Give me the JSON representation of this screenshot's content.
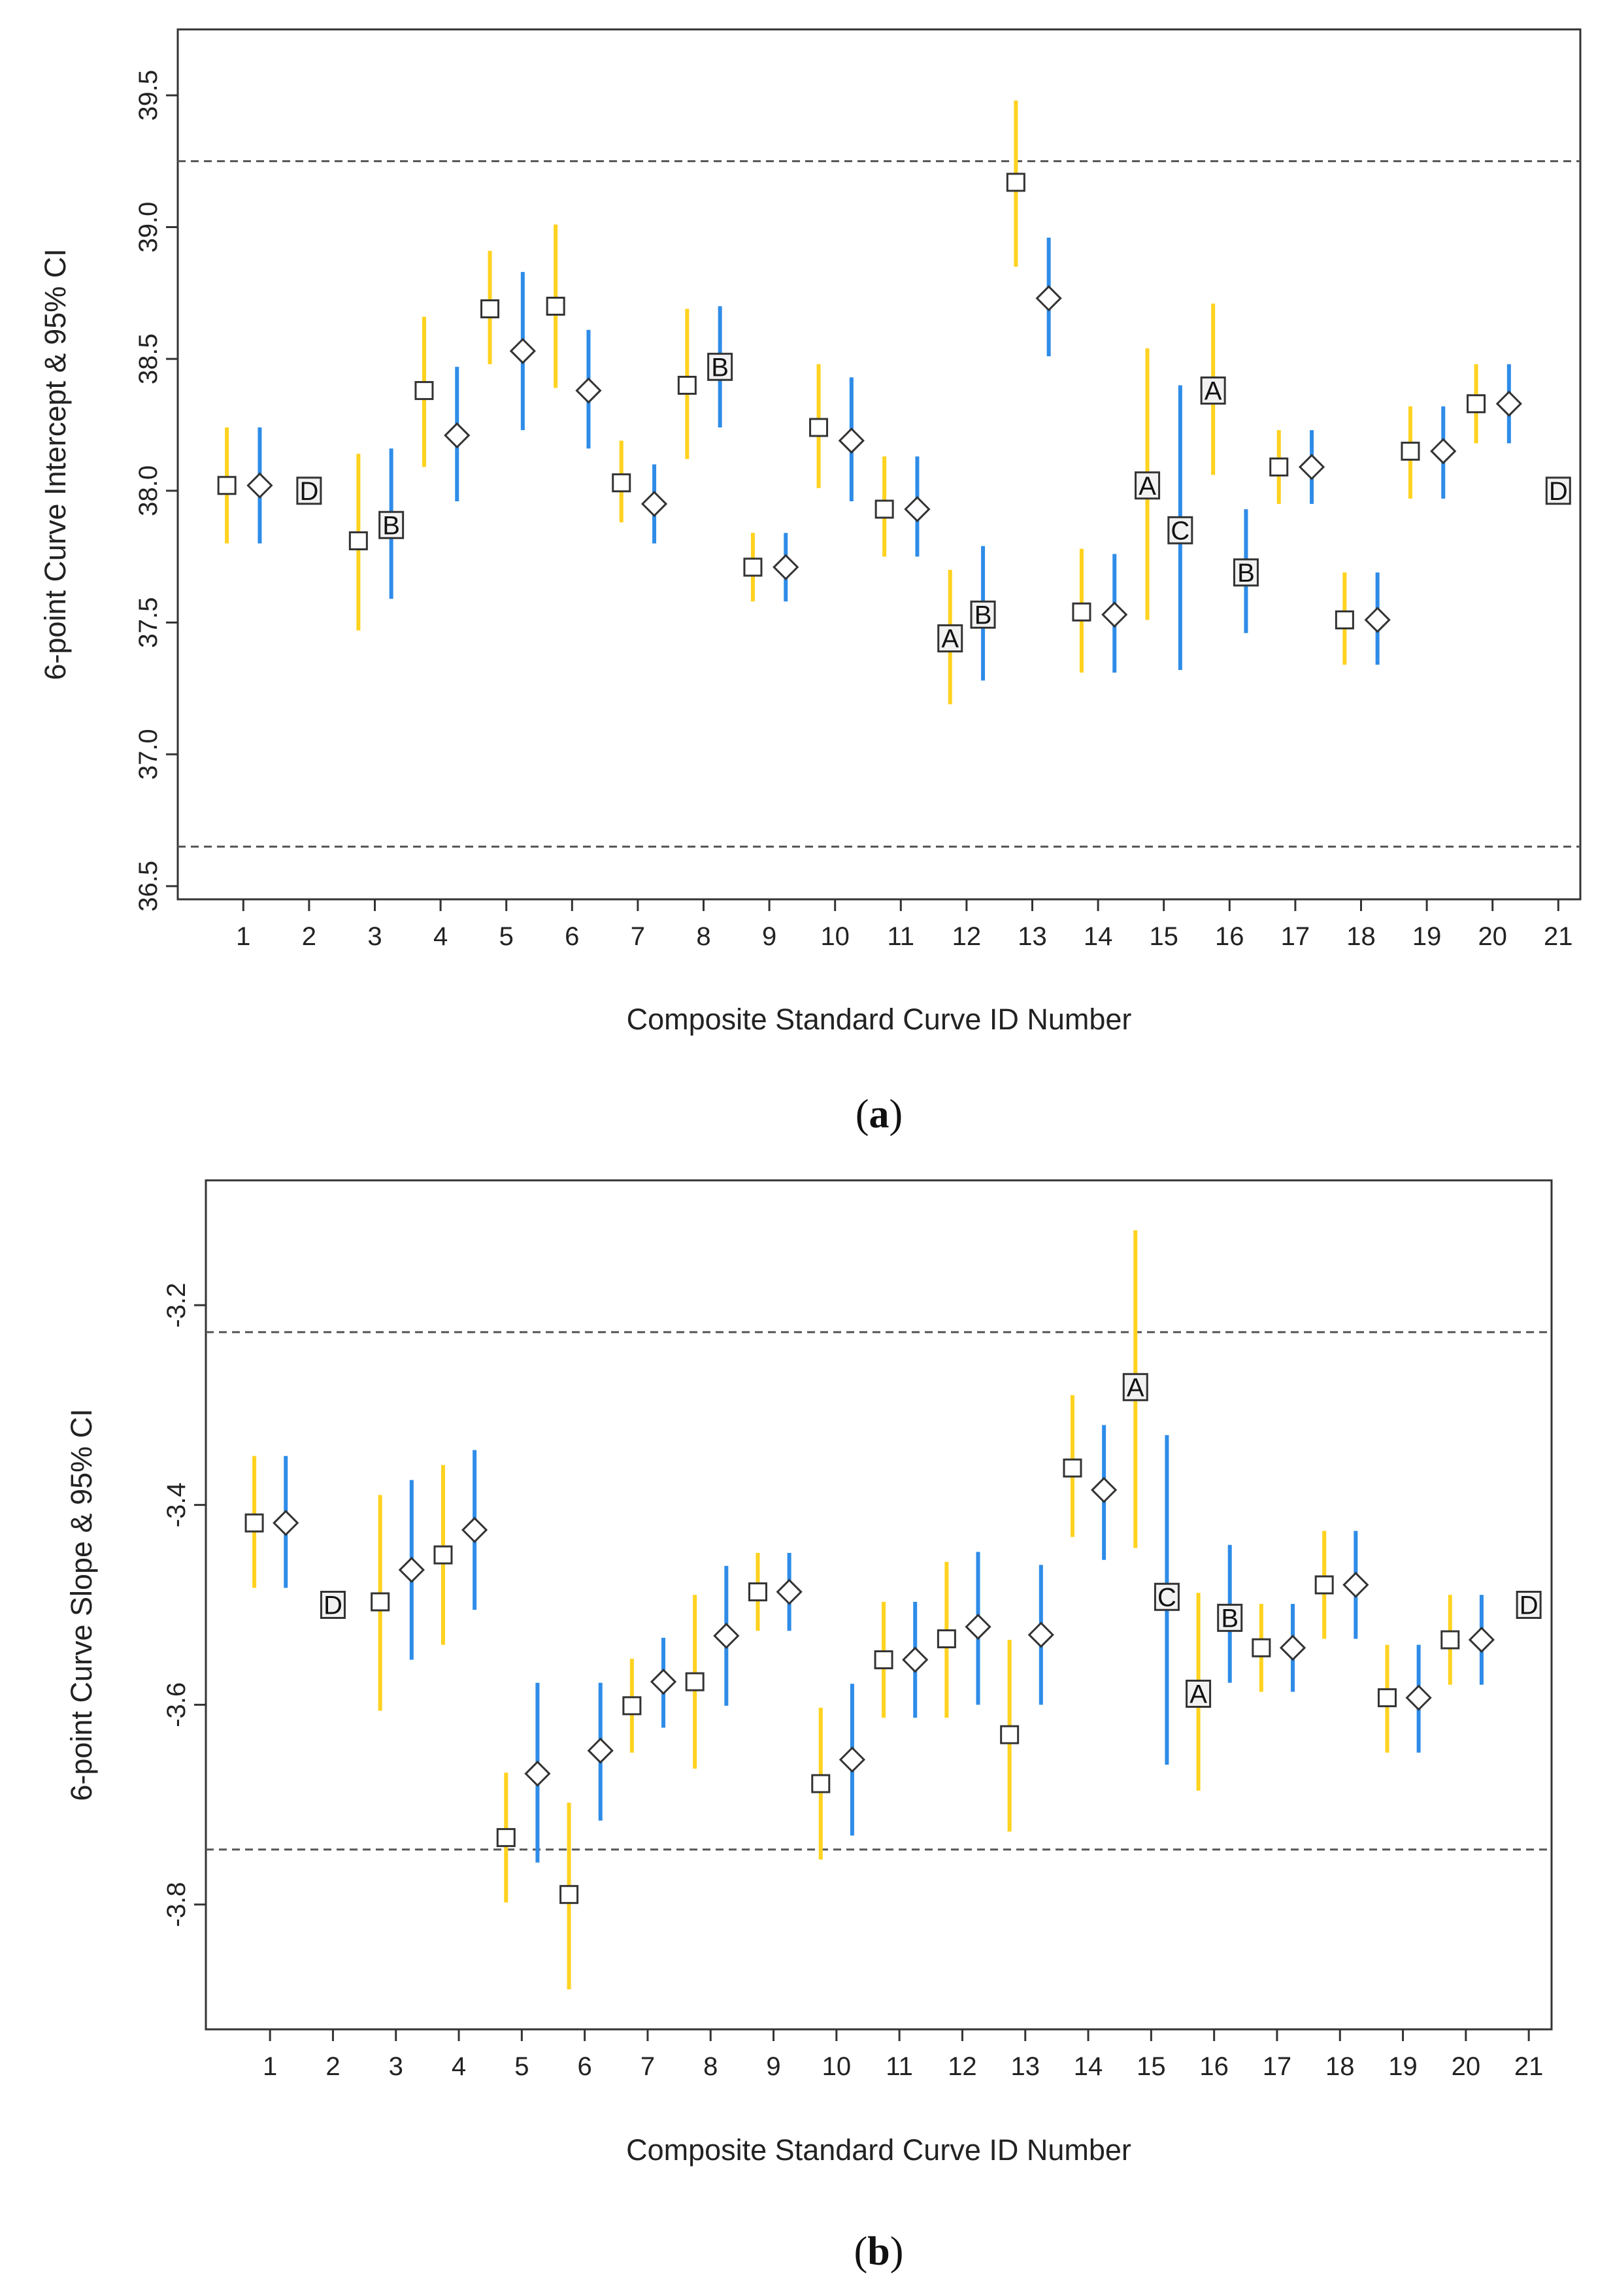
{
  "chart_data": [
    {
      "type": "scatter",
      "panel_label": "a",
      "ylabel": "6-point Curve Intercept & 95% CI",
      "xlabel": "Composite Standard Curve ID Number",
      "ylim": [
        36.45,
        39.75
      ],
      "yticks": [
        "36.5",
        "37.0",
        "37.5",
        "38.0",
        "38.5",
        "39.0",
        "39.5"
      ],
      "xticks": [
        "1",
        "2",
        "3",
        "4",
        "5",
        "6",
        "7",
        "8",
        "9",
        "10",
        "11",
        "12",
        "13",
        "14",
        "15",
        "16",
        "17",
        "18",
        "19",
        "20",
        "21"
      ],
      "reference_lines": [
        39.25,
        36.65
      ],
      "colors": {
        "yellow": "#FFD21F",
        "blue": "#2E8CE8",
        "dashed": "#555555",
        "marker": "#333333"
      },
      "points": [
        {
          "x": 0.75,
          "y": 38.02,
          "lo": 37.8,
          "hi": 38.24,
          "marker": "square",
          "color": "yellow"
        },
        {
          "x": 1.25,
          "y": 38.02,
          "lo": 37.8,
          "hi": 38.24,
          "marker": "diamond",
          "color": "blue"
        },
        {
          "x": 2.0,
          "y": 38.0,
          "marker": "letter",
          "letter": "D"
        },
        {
          "x": 2.75,
          "y": 37.81,
          "lo": 37.47,
          "hi": 38.14,
          "marker": "square",
          "color": "yellow"
        },
        {
          "x": 3.25,
          "y": 37.87,
          "lo": 37.59,
          "hi": 38.16,
          "marker": "letter",
          "letter": "B",
          "color": "blue"
        },
        {
          "x": 3.75,
          "y": 38.38,
          "lo": 38.09,
          "hi": 38.66,
          "marker": "square",
          "color": "yellow"
        },
        {
          "x": 4.25,
          "y": 38.21,
          "lo": 37.96,
          "hi": 38.47,
          "marker": "diamond",
          "color": "blue"
        },
        {
          "x": 4.75,
          "y": 38.69,
          "lo": 38.48,
          "hi": 38.91,
          "marker": "square",
          "color": "yellow"
        },
        {
          "x": 5.25,
          "y": 38.53,
          "lo": 38.23,
          "hi": 38.83,
          "marker": "diamond",
          "color": "blue"
        },
        {
          "x": 5.75,
          "y": 38.7,
          "lo": 38.39,
          "hi": 39.01,
          "marker": "square",
          "color": "yellow"
        },
        {
          "x": 6.25,
          "y": 38.38,
          "lo": 38.16,
          "hi": 38.61,
          "marker": "diamond",
          "color": "blue"
        },
        {
          "x": 6.75,
          "y": 38.03,
          "lo": 37.88,
          "hi": 38.19,
          "marker": "square",
          "color": "yellow"
        },
        {
          "x": 7.25,
          "y": 37.95,
          "lo": 37.8,
          "hi": 38.1,
          "marker": "diamond",
          "color": "blue"
        },
        {
          "x": 7.75,
          "y": 38.4,
          "lo": 38.12,
          "hi": 38.69,
          "marker": "square",
          "color": "yellow"
        },
        {
          "x": 8.25,
          "y": 38.47,
          "lo": 38.24,
          "hi": 38.7,
          "marker": "letter",
          "letter": "B",
          "color": "blue"
        },
        {
          "x": 8.75,
          "y": 37.71,
          "lo": 37.58,
          "hi": 37.84,
          "marker": "square",
          "color": "yellow"
        },
        {
          "x": 9.25,
          "y": 37.71,
          "lo": 37.58,
          "hi": 37.84,
          "marker": "diamond",
          "color": "blue"
        },
        {
          "x": 9.75,
          "y": 38.24,
          "lo": 38.01,
          "hi": 38.48,
          "marker": "square",
          "color": "yellow"
        },
        {
          "x": 10.25,
          "y": 38.19,
          "lo": 37.96,
          "hi": 38.43,
          "marker": "diamond",
          "color": "blue"
        },
        {
          "x": 10.75,
          "y": 37.93,
          "lo": 37.75,
          "hi": 38.13,
          "marker": "square",
          "color": "yellow"
        },
        {
          "x": 11.25,
          "y": 37.93,
          "lo": 37.75,
          "hi": 38.13,
          "marker": "diamond",
          "color": "blue"
        },
        {
          "x": 11.75,
          "y": 37.44,
          "lo": 37.19,
          "hi": 37.7,
          "marker": "letter",
          "letter": "A",
          "color": "yellow"
        },
        {
          "x": 12.25,
          "y": 37.53,
          "lo": 37.28,
          "hi": 37.79,
          "marker": "letter",
          "letter": "B",
          "color": "blue"
        },
        {
          "x": 12.75,
          "y": 39.17,
          "lo": 38.85,
          "hi": 39.48,
          "marker": "square",
          "color": "yellow"
        },
        {
          "x": 13.25,
          "y": 38.73,
          "lo": 38.51,
          "hi": 38.96,
          "marker": "diamond",
          "color": "blue"
        },
        {
          "x": 13.75,
          "y": 37.54,
          "lo": 37.31,
          "hi": 37.78,
          "marker": "square",
          "color": "yellow"
        },
        {
          "x": 14.25,
          "y": 37.53,
          "lo": 37.31,
          "hi": 37.76,
          "marker": "diamond",
          "color": "blue"
        },
        {
          "x": 14.75,
          "y": 38.02,
          "lo": 37.51,
          "hi": 38.54,
          "marker": "letter",
          "letter": "A",
          "color": "yellow"
        },
        {
          "x": 15.25,
          "y": 37.85,
          "lo": 37.32,
          "hi": 38.4,
          "marker": "letter",
          "letter": "C",
          "color": "blue"
        },
        {
          "x": 15.75,
          "y": 38.38,
          "lo": 38.06,
          "hi": 38.71,
          "marker": "letter",
          "letter": "A",
          "color": "yellow"
        },
        {
          "x": 16.25,
          "y": 37.69,
          "lo": 37.46,
          "hi": 37.93,
          "marker": "letter",
          "letter": "B",
          "color": "blue"
        },
        {
          "x": 16.75,
          "y": 38.09,
          "lo": 37.95,
          "hi": 38.23,
          "marker": "square",
          "color": "yellow"
        },
        {
          "x": 17.25,
          "y": 38.09,
          "lo": 37.95,
          "hi": 38.23,
          "marker": "diamond",
          "color": "blue"
        },
        {
          "x": 17.75,
          "y": 37.51,
          "lo": 37.34,
          "hi": 37.69,
          "marker": "square",
          "color": "yellow"
        },
        {
          "x": 18.25,
          "y": 37.51,
          "lo": 37.34,
          "hi": 37.69,
          "marker": "diamond",
          "color": "blue"
        },
        {
          "x": 18.75,
          "y": 38.15,
          "lo": 37.97,
          "hi": 38.32,
          "marker": "square",
          "color": "yellow"
        },
        {
          "x": 19.25,
          "y": 38.15,
          "lo": 37.97,
          "hi": 38.32,
          "marker": "diamond",
          "color": "blue"
        },
        {
          "x": 19.75,
          "y": 38.33,
          "lo": 38.18,
          "hi": 38.48,
          "marker": "square",
          "color": "yellow"
        },
        {
          "x": 20.25,
          "y": 38.33,
          "lo": 38.18,
          "hi": 38.48,
          "marker": "diamond",
          "color": "blue"
        },
        {
          "x": 21.0,
          "y": 38.0,
          "marker": "letter",
          "letter": "D"
        }
      ]
    },
    {
      "type": "scatter",
      "panel_label": "b",
      "ylabel": "6-point Curve Slope & 95% CI",
      "xlabel": "Composite Standard Curve ID Number",
      "ylim": [
        -3.925,
        -3.075
      ],
      "yticks": [
        "-3.8",
        "-3.6",
        "-3.4",
        "-3.2"
      ],
      "xticks": [
        "1",
        "2",
        "3",
        "4",
        "5",
        "6",
        "7",
        "8",
        "9",
        "10",
        "11",
        "12",
        "13",
        "14",
        "15",
        "16",
        "17",
        "18",
        "19",
        "20",
        "21"
      ],
      "reference_lines": [
        -3.227,
        -3.745
      ],
      "colors": {
        "yellow": "#FFD21F",
        "blue": "#2E8CE8",
        "dashed": "#555555",
        "marker": "#333333"
      },
      "points": [
        {
          "x": 0.75,
          "y": -3.418,
          "lo": -3.483,
          "hi": -3.351,
          "marker": "square",
          "color": "yellow"
        },
        {
          "x": 1.25,
          "y": -3.418,
          "lo": -3.483,
          "hi": -3.351,
          "marker": "diamond",
          "color": "blue"
        },
        {
          "x": 2.0,
          "y": -3.5,
          "marker": "letter",
          "letter": "D"
        },
        {
          "x": 2.75,
          "y": -3.497,
          "lo": -3.606,
          "hi": -3.39,
          "marker": "square",
          "color": "yellow"
        },
        {
          "x": 3.25,
          "y": -3.465,
          "lo": -3.555,
          "hi": -3.375,
          "marker": "diamond",
          "color": "blue"
        },
        {
          "x": 3.75,
          "y": -3.45,
          "lo": -3.54,
          "hi": -3.36,
          "marker": "square",
          "color": "yellow"
        },
        {
          "x": 4.25,
          "y": -3.425,
          "lo": -3.505,
          "hi": -3.345,
          "marker": "diamond",
          "color": "blue"
        },
        {
          "x": 4.75,
          "y": -3.733,
          "lo": -3.798,
          "hi": -3.668,
          "marker": "square",
          "color": "yellow"
        },
        {
          "x": 5.25,
          "y": -3.669,
          "lo": -3.758,
          "hi": -3.578,
          "marker": "diamond",
          "color": "blue"
        },
        {
          "x": 5.75,
          "y": -3.79,
          "lo": -3.885,
          "hi": -3.698,
          "marker": "square",
          "color": "yellow"
        },
        {
          "x": 6.25,
          "y": -3.646,
          "lo": -3.716,
          "hi": -3.578,
          "marker": "diamond",
          "color": "blue"
        },
        {
          "x": 6.75,
          "y": -3.601,
          "lo": -3.648,
          "hi": -3.554,
          "marker": "square",
          "color": "yellow"
        },
        {
          "x": 7.25,
          "y": -3.577,
          "lo": -3.623,
          "hi": -3.533,
          "marker": "diamond",
          "color": "blue"
        },
        {
          "x": 7.75,
          "y": -3.577,
          "lo": -3.664,
          "hi": -3.49,
          "marker": "square",
          "color": "yellow"
        },
        {
          "x": 8.25,
          "y": -3.531,
          "lo": -3.601,
          "hi": -3.461,
          "marker": "diamond",
          "color": "blue"
        },
        {
          "x": 8.75,
          "y": -3.487,
          "lo": -3.526,
          "hi": -3.448,
          "marker": "square",
          "color": "yellow"
        },
        {
          "x": 9.25,
          "y": -3.487,
          "lo": -3.526,
          "hi": -3.448,
          "marker": "diamond",
          "color": "blue"
        },
        {
          "x": 9.75,
          "y": -3.679,
          "lo": -3.755,
          "hi": -3.603,
          "marker": "square",
          "color": "yellow"
        },
        {
          "x": 10.25,
          "y": -3.655,
          "lo": -3.731,
          "hi": -3.579,
          "marker": "diamond",
          "color": "blue"
        },
        {
          "x": 10.75,
          "y": -3.555,
          "lo": -3.613,
          "hi": -3.497,
          "marker": "square",
          "color": "yellow"
        },
        {
          "x": 11.25,
          "y": -3.555,
          "lo": -3.613,
          "hi": -3.497,
          "marker": "diamond",
          "color": "blue"
        },
        {
          "x": 11.75,
          "y": -3.534,
          "lo": -3.613,
          "hi": -3.457,
          "marker": "square",
          "color": "yellow"
        },
        {
          "x": 12.25,
          "y": -3.522,
          "lo": -3.6,
          "hi": -3.447,
          "marker": "diamond",
          "color": "blue"
        },
        {
          "x": 12.75,
          "y": -3.63,
          "lo": -3.727,
          "hi": -3.535,
          "marker": "square",
          "color": "yellow"
        },
        {
          "x": 13.25,
          "y": -3.53,
          "lo": -3.6,
          "hi": -3.46,
          "marker": "diamond",
          "color": "blue"
        },
        {
          "x": 13.75,
          "y": -3.363,
          "lo": -3.432,
          "hi": -3.29,
          "marker": "square",
          "color": "yellow"
        },
        {
          "x": 14.25,
          "y": -3.385,
          "lo": -3.455,
          "hi": -3.32,
          "marker": "diamond",
          "color": "blue"
        },
        {
          "x": 14.75,
          "y": -3.282,
          "lo": -3.443,
          "hi": -3.125,
          "marker": "letter",
          "letter": "A",
          "color": "yellow"
        },
        {
          "x": 15.25,
          "y": -3.492,
          "lo": -3.66,
          "hi": -3.33,
          "marker": "letter",
          "letter": "C",
          "color": "blue"
        },
        {
          "x": 15.75,
          "y": -3.589,
          "lo": -3.686,
          "hi": -3.488,
          "marker": "letter",
          "letter": "A",
          "color": "yellow"
        },
        {
          "x": 16.25,
          "y": -3.513,
          "lo": -3.578,
          "hi": -3.44,
          "marker": "letter",
          "letter": "B",
          "color": "blue"
        },
        {
          "x": 16.75,
          "y": -3.543,
          "lo": -3.587,
          "hi": -3.499,
          "marker": "square",
          "color": "yellow"
        },
        {
          "x": 17.25,
          "y": -3.543,
          "lo": -3.587,
          "hi": -3.499,
          "marker": "diamond",
          "color": "blue"
        },
        {
          "x": 17.75,
          "y": -3.48,
          "lo": -3.534,
          "hi": -3.426,
          "marker": "square",
          "color": "yellow"
        },
        {
          "x": 18.25,
          "y": -3.48,
          "lo": -3.534,
          "hi": -3.426,
          "marker": "diamond",
          "color": "blue"
        },
        {
          "x": 18.75,
          "y": -3.593,
          "lo": -3.648,
          "hi": -3.54,
          "marker": "square",
          "color": "yellow"
        },
        {
          "x": 19.25,
          "y": -3.593,
          "lo": -3.648,
          "hi": -3.54,
          "marker": "diamond",
          "color": "blue"
        },
        {
          "x": 19.75,
          "y": -3.535,
          "lo": -3.58,
          "hi": -3.49,
          "marker": "square",
          "color": "yellow"
        },
        {
          "x": 20.25,
          "y": -3.535,
          "lo": -3.58,
          "hi": -3.49,
          "marker": "diamond",
          "color": "blue"
        },
        {
          "x": 21.0,
          "y": -3.5,
          "marker": "letter",
          "letter": "D"
        }
      ]
    }
  ]
}
